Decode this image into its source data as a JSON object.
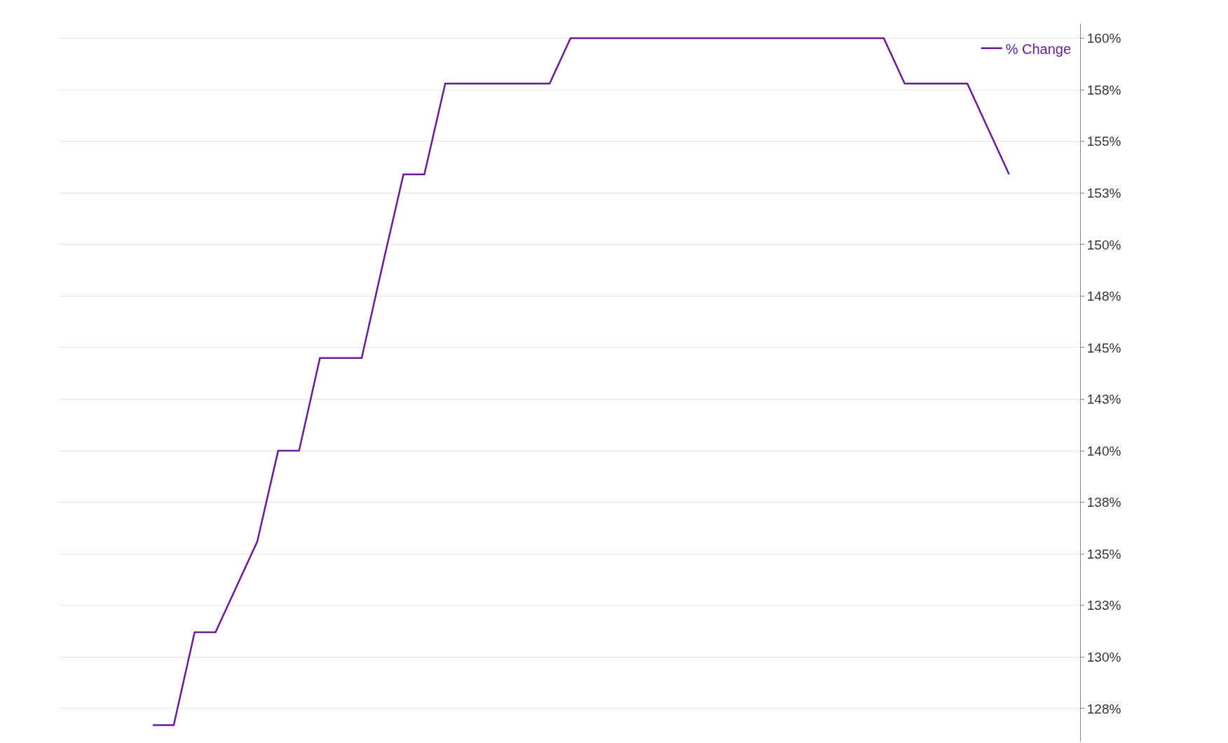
{
  "chart_data": {
    "type": "line",
    "categories": [
      null,
      null,
      null,
      null,
      null,
      null,
      null,
      null,
      null,
      null,
      null,
      null,
      null,
      null,
      null,
      null,
      null,
      null,
      null,
      null,
      null,
      null,
      null,
      null,
      null,
      null,
      null,
      null,
      null,
      null,
      null,
      null,
      null,
      null,
      null,
      null,
      null,
      null,
      null,
      null,
      null,
      null
    ],
    "series": [
      {
        "name": "% Change",
        "color": "#6a1b9a",
        "values": [
          126.7,
          126.7,
          131.2,
          131.2,
          133.4,
          135.6,
          140,
          140,
          144.5,
          144.5,
          144.5,
          149.0,
          153.4,
          153.4,
          157.8,
          157.8,
          157.8,
          157.8,
          157.8,
          157.8,
          160,
          160,
          160,
          160,
          160,
          160,
          160,
          160,
          160,
          160,
          160,
          160,
          160,
          160,
          160,
          160,
          157.8,
          157.8,
          157.8,
          157.8,
          155.6,
          153.4
        ]
      }
    ],
    "ylim": [
      125.9,
      160.7
    ],
    "yticks": [
      {
        "value": 127.5,
        "label": "128%"
      },
      {
        "value": 130,
        "label": "130%"
      },
      {
        "value": 132.5,
        "label": "133%"
      },
      {
        "value": 135,
        "label": "135%"
      },
      {
        "value": 137.5,
        "label": "138%"
      },
      {
        "value": 140,
        "label": "140%"
      },
      {
        "value": 142.5,
        "label": "143%"
      },
      {
        "value": 145,
        "label": "145%"
      },
      {
        "value": 147.5,
        "label": "148%"
      },
      {
        "value": 150,
        "label": "150%"
      },
      {
        "value": 152.5,
        "label": "153%"
      },
      {
        "value": 155,
        "label": "155%"
      },
      {
        "value": 157.5,
        "label": "158%"
      },
      {
        "value": 160,
        "label": "160%"
      }
    ],
    "grid": "y",
    "legend": "top right",
    "marker": "none",
    "line_style": "solid",
    "tick_labels": "y"
  }
}
